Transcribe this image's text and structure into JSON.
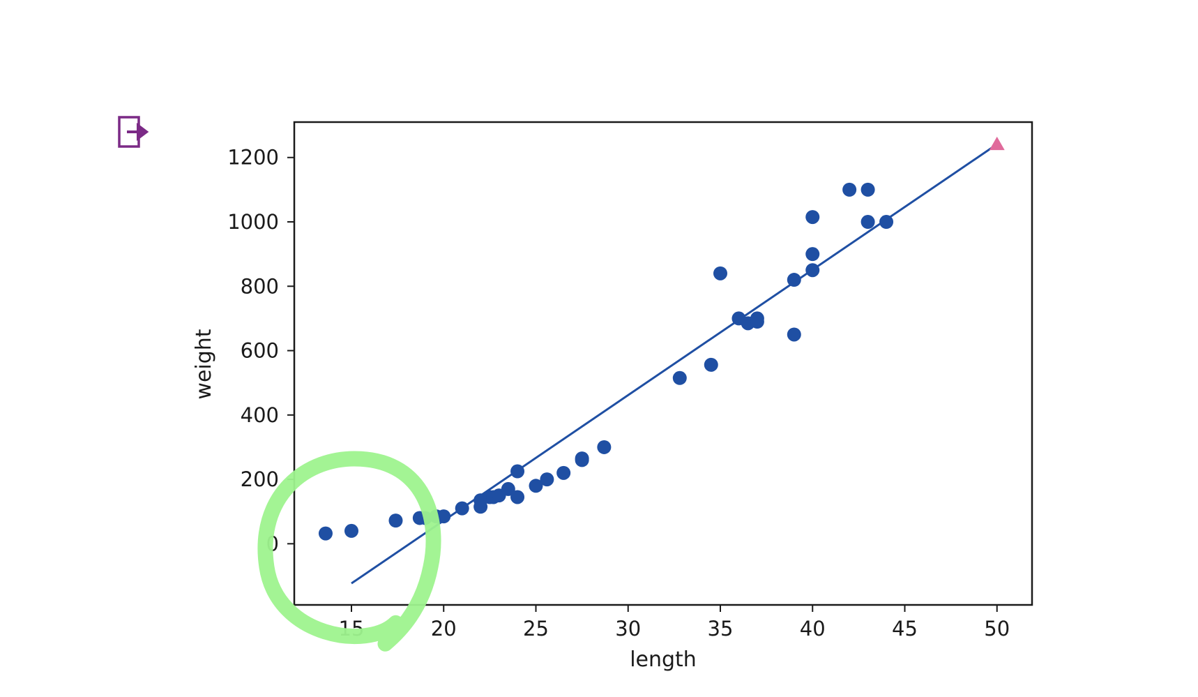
{
  "toolbar": {
    "export_icon": "export-icon",
    "export_color": "#7b2a86"
  },
  "chart_data": {
    "type": "scatter",
    "xlabel": "length",
    "ylabel": "weight",
    "xlim": [
      11.9,
      51.9
    ],
    "ylim": [
      -190,
      1310
    ],
    "x_ticks": [
      15,
      20,
      25,
      30,
      35,
      40,
      45,
      50
    ],
    "y_ticks": [
      0,
      200,
      400,
      600,
      800,
      1000,
      1200
    ],
    "grid": false,
    "legend": "none",
    "series": [
      {
        "kind": "scatter",
        "marker": "circle",
        "color": "#1f4fa3",
        "points": [
          [
            13.6,
            32
          ],
          [
            15.0,
            40
          ],
          [
            17.4,
            72
          ],
          [
            18.7,
            80
          ],
          [
            19.0,
            80
          ],
          [
            19.6,
            85
          ],
          [
            20.0,
            85
          ],
          [
            21.0,
            110
          ],
          [
            22.0,
            135
          ],
          [
            22.0,
            115
          ],
          [
            22.5,
            145
          ],
          [
            22.7,
            145
          ],
          [
            23.0,
            150
          ],
          [
            23.5,
            170
          ],
          [
            24.0,
            225
          ],
          [
            24.0,
            145
          ],
          [
            25.0,
            180
          ],
          [
            25.6,
            200
          ],
          [
            26.5,
            220
          ],
          [
            27.5,
            265
          ],
          [
            27.5,
            260
          ],
          [
            28.7,
            300
          ],
          [
            32.8,
            515
          ],
          [
            34.5,
            556
          ],
          [
            35.0,
            840
          ],
          [
            36.0,
            700
          ],
          [
            36.5,
            685
          ],
          [
            37.0,
            700
          ],
          [
            37.0,
            690
          ],
          [
            39.0,
            820
          ],
          [
            39.0,
            650
          ],
          [
            40.0,
            1015
          ],
          [
            40.0,
            900
          ],
          [
            40.0,
            850
          ],
          [
            42.0,
            1100
          ],
          [
            43.0,
            1100
          ],
          [
            43.0,
            1000
          ],
          [
            44.0,
            1000
          ]
        ]
      },
      {
        "kind": "line",
        "color": "#1f4fa3",
        "points": [
          [
            15,
            -123
          ],
          [
            50,
            1241
          ]
        ]
      },
      {
        "kind": "scatter",
        "marker": "triangle",
        "color": "#e06a9b",
        "points": [
          [
            50,
            1241
          ]
        ]
      }
    ],
    "annotation": {
      "kind": "freehand-circle",
      "color": "#9ef38e",
      "encloses": [
        [
          13.6,
          32
        ],
        [
          15.0,
          40
        ]
      ]
    }
  }
}
